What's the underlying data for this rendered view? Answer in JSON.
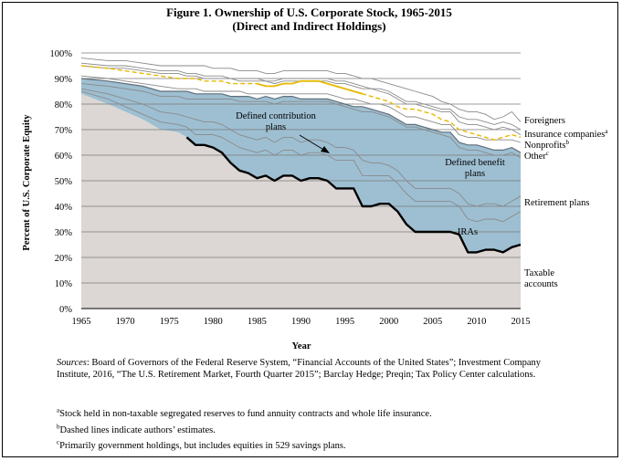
{
  "figure": {
    "title_line1": "Figure 1. Ownership of U.S. Corporate Stock, 1965-2015",
    "title_line2": "(Direct and Indirect Holdings)",
    "sources_label": "Sources",
    "sources_text": ": Board of Governors of the Federal Reserve System, “Financial Accounts of the United States”; Investment Company Institute, 2016, “The U.S. Retirement Market, Fourth Quarter 2015”; Barclay Hedge; Preqin; Tax Policy Center calculations.",
    "footnotes": [
      {
        "mark": "a",
        "text": "Stock held in non-taxable segregated reserves to fund annuity contracts and whole life insurance."
      },
      {
        "mark": "b",
        "text": "Dashed lines indicate authors’ estimates."
      },
      {
        "mark": "c",
        "text": "Primarily government holdings, but includes equities in 529 savings plans."
      }
    ]
  },
  "chart_data": {
    "type": "area",
    "xlabel": "Year",
    "ylabel": "Percent of U.S. Corporate Equity",
    "xlim": [
      1965,
      2015
    ],
    "ylim": [
      0,
      100
    ],
    "x_ticks": [
      "1965",
      "1970",
      "1975",
      "1980",
      "1985",
      "1990",
      "1995",
      "2000",
      "2005",
      "2010",
      "2015"
    ],
    "y_ticks": [
      "0%",
      "10%",
      "20%",
      "30%",
      "40%",
      "50%",
      "60%",
      "70%",
      "80%",
      "90%",
      "100%"
    ],
    "colors": {
      "taxable": "#dcd7d4",
      "retirement": "#9ebfd2",
      "upper": "#ffffff",
      "edge": "#8a8a8a",
      "insurance": "#e6b800",
      "taxable_line": "#000000"
    },
    "x": [
      1965,
      1968,
      1970,
      1972,
      1974,
      1976,
      1977,
      1978,
      1979,
      1980,
      1981,
      1982,
      1983,
      1984,
      1985,
      1986,
      1987,
      1988,
      1989,
      1990,
      1991,
      1992,
      1993,
      1994,
      1995,
      1996,
      1997,
      1998,
      1999,
      2000,
      2001,
      2002,
      2003,
      2004,
      2005,
      2006,
      2007,
      2008,
      2009,
      2010,
      2011,
      2012,
      2013,
      2014,
      2015
    ],
    "series": [
      {
        "name": "Taxable accounts",
        "values": [
          84,
          80,
          77,
          74,
          70,
          69,
          67,
          64,
          64,
          63,
          61,
          57,
          54,
          53,
          51,
          52,
          50,
          52,
          52,
          50,
          51,
          51,
          50,
          47,
          47,
          47,
          40,
          40,
          41,
          41,
          38,
          33,
          30,
          30,
          30,
          30,
          30,
          29,
          22,
          22,
          23,
          23,
          22,
          24,
          25
        ]
      },
      {
        "name": "IRAs",
        "values": [
          85,
          82,
          79,
          76,
          73,
          72,
          71,
          68,
          68,
          68,
          67,
          65,
          63,
          62,
          61,
          62,
          60,
          62,
          62,
          60,
          61,
          61,
          60,
          58,
          58,
          58,
          52,
          52,
          52,
          52,
          49,
          45,
          42,
          42,
          42,
          42,
          42,
          40,
          35,
          34,
          35,
          35,
          34,
          36,
          38
        ]
      },
      {
        "name": "Defined contribution plans",
        "values": [
          86,
          84,
          82,
          80,
          77,
          76,
          75,
          74,
          73,
          73,
          72,
          70,
          68,
          67,
          66,
          67,
          65,
          67,
          67,
          65,
          66,
          66,
          65,
          63,
          63,
          62,
          58,
          57,
          57,
          56,
          54,
          50,
          47,
          47,
          47,
          47,
          47,
          45,
          41,
          40,
          41,
          41,
          40,
          42,
          44
        ]
      },
      {
        "name": "Defined benefit plans",
        "values": [
          88,
          87,
          86,
          85,
          83,
          83,
          82,
          82,
          82,
          82,
          82,
          82,
          81,
          81,
          81,
          81,
          80,
          81,
          81,
          81,
          81,
          81,
          81,
          80,
          79,
          78,
          77,
          77,
          76,
          75,
          73,
          71,
          71,
          70,
          69,
          68,
          67,
          63,
          62,
          62,
          61,
          60,
          60,
          61,
          59
        ]
      },
      {
        "name": "Retirement plans",
        "values": [
          90,
          89,
          88,
          87,
          85,
          85,
          85,
          84,
          84,
          84,
          84,
          83,
          83,
          83,
          82,
          83,
          82,
          83,
          83,
          82,
          82,
          82,
          82,
          81,
          80,
          79,
          79,
          78,
          77,
          76,
          74,
          72,
          72,
          71,
          70,
          69,
          69,
          65,
          64,
          64,
          63,
          62,
          62,
          63,
          61
        ]
      },
      {
        "name": "Other",
        "values": [
          91,
          90,
          89,
          88,
          87,
          86,
          86,
          86,
          85,
          85,
          85,
          85,
          85,
          84,
          84,
          84,
          84,
          84,
          84,
          84,
          84,
          84,
          84,
          83,
          82,
          82,
          81,
          80,
          80,
          79,
          77,
          75,
          75,
          74,
          73,
          72,
          72,
          68,
          67,
          67,
          66,
          66,
          66,
          66,
          65
        ]
      },
      {
        "name": "Nonprofits",
        "values": [
          95,
          94,
          94,
          93,
          92,
          92,
          91,
          91,
          90,
          90,
          90,
          90,
          89,
          89,
          89,
          89,
          88,
          89,
          89,
          89,
          89,
          89,
          89,
          88,
          88,
          87,
          86,
          86,
          85,
          84,
          82,
          80,
          80,
          79,
          78,
          77,
          77,
          73,
          72,
          72,
          71,
          70,
          71,
          70,
          68
        ]
      },
      {
        "name": "Insurance companies",
        "values": [
          96,
          95,
          95,
          94,
          93,
          93,
          92,
          92,
          91,
          91,
          91,
          90,
          90,
          90,
          90,
          89,
          89,
          90,
          90,
          90,
          90,
          90,
          90,
          89,
          89,
          88,
          87,
          86,
          86,
          85,
          83,
          81,
          81,
          80,
          79,
          78,
          78,
          75,
          74,
          74,
          73,
          72,
          73,
          72,
          70
        ]
      },
      {
        "name": "Foreigners",
        "values": [
          98,
          97,
          97,
          96,
          95,
          95,
          95,
          95,
          95,
          94,
          94,
          94,
          93,
          93,
          93,
          92,
          92,
          93,
          93,
          93,
          93,
          93,
          93,
          92,
          92,
          91,
          90,
          90,
          89,
          88,
          87,
          86,
          85,
          84,
          83,
          81,
          80,
          78,
          77,
          77,
          76,
          74,
          75,
          77,
          73
        ]
      }
    ],
    "insurance_dashed": {
      "name": "Insurance companies",
      "values": [
        95,
        94,
        93,
        92,
        91,
        90,
        90,
        90,
        89,
        89,
        89,
        88,
        88,
        88,
        88,
        87,
        87,
        88,
        88,
        89,
        89,
        89,
        88,
        87,
        86,
        85,
        84,
        83,
        82,
        81,
        79,
        78,
        78,
        77,
        76,
        74,
        73,
        70,
        69,
        68,
        67,
        66,
        67,
        68,
        67
      ]
    },
    "labels": {
      "foreigners": "Foreigners",
      "insurance": "Insurance companies",
      "insurance_mark": "a",
      "nonprofits": "Nonprofits",
      "nonprofits_mark": "b",
      "other": "Other",
      "other_mark": "c",
      "retirement": "Retirement plans",
      "taxable_1": "Taxable",
      "taxable_2": "accounts",
      "dc_1": "Defined contribution",
      "dc_2": "plans",
      "db_1": "Defined benefit",
      "db_2": "plans",
      "iras": "IRAs"
    }
  }
}
